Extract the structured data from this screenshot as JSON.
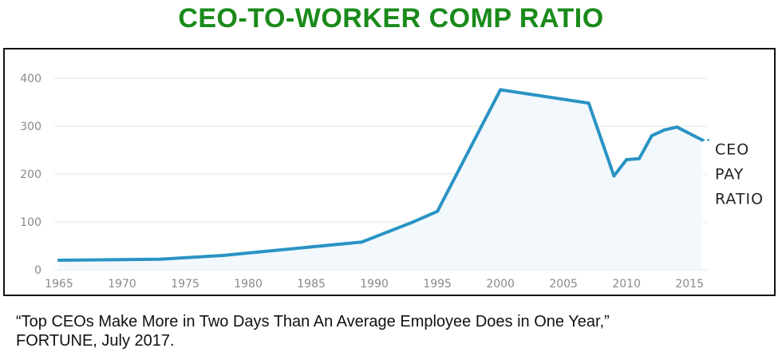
{
  "title": "CEO-TO-WORKER COMP RATIO",
  "caption": {
    "line1": "“Top CEOs Make More in Two Days Than An Average Employee Does in One Year,”",
    "line2": "FORTUNE, July 2017."
  },
  "colors": {
    "title": "#1a8a1a",
    "line": "#2a93c4",
    "area": "#f2f8fc",
    "grid": "#e3e3e3",
    "tick": "#8a8a8a"
  },
  "chart_data": {
    "type": "line",
    "x": [
      1965,
      1973,
      1978,
      1989,
      1993,
      1995,
      2000,
      2007,
      2009,
      2010,
      2011,
      2012,
      2013,
      2014,
      2016
    ],
    "series": [
      {
        "name": "CEO PAY RATIO",
        "label_lines": [
          "CEO",
          "PAY",
          "RATIO"
        ],
        "values": [
          20,
          22,
          30,
          58,
          99,
          122,
          376,
          348,
          196,
          230,
          232,
          280,
          292,
          298,
          271
        ]
      }
    ],
    "xlim": [
      1965,
      2016
    ],
    "ylim": [
      0,
      400
    ],
    "xticks": [
      1965,
      1970,
      1975,
      1980,
      1985,
      1990,
      1995,
      2000,
      2005,
      2010,
      2015
    ],
    "yticks": [
      0,
      100,
      200,
      300,
      400
    ],
    "grid": true,
    "legend": "end-of-line label"
  }
}
